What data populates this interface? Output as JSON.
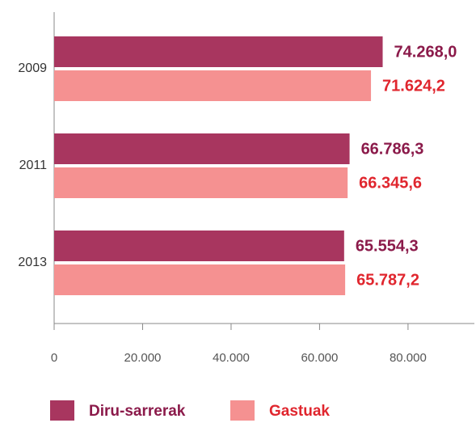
{
  "chart_data": {
    "type": "bar",
    "orientation": "horizontal",
    "categories": [
      "2009",
      "2011",
      "2013"
    ],
    "series": [
      {
        "name": "Diru-sarrerak",
        "color": "#a8365f",
        "values": [
          74268.0,
          66786.3,
          65554.3
        ],
        "value_labels": [
          "74.268,0",
          "66.786,3",
          "65.554,3"
        ]
      },
      {
        "name": "Gastuak",
        "color": "#f59191",
        "values": [
          71624.2,
          66345.6,
          65787.2
        ],
        "value_labels": [
          "71.624,2",
          "66.345,6",
          "65.787,2"
        ]
      }
    ],
    "xlim": [
      0,
      95000
    ],
    "xticks": [
      0,
      {
        "value": 20000,
        "label": "20.000"
      },
      {
        "value": 40000,
        "label": "40.000"
      },
      {
        "value": 60000,
        "label": "60.000"
      },
      {
        "value": 80000,
        "label": "80.000"
      }
    ],
    "grid": false,
    "legend": "bottom"
  }
}
